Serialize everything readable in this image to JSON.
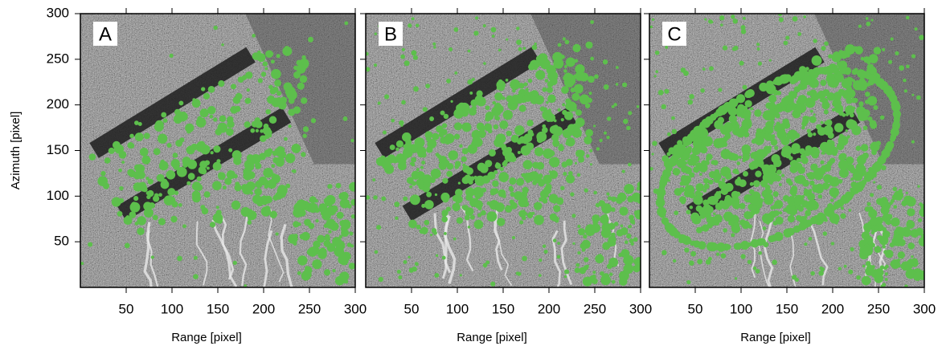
{
  "chart_data": [
    {
      "type": "image",
      "label": "A",
      "xlabel": "Range [pixel]",
      "ylabel": "Azimuth [pixel]",
      "xlim": [
        0,
        300
      ],
      "ylim": [
        0,
        300
      ],
      "xticks": [
        50,
        100,
        150,
        200,
        250,
        300
      ],
      "yticks": [
        50,
        100,
        150,
        200,
        250,
        300
      ],
      "ytick_labels": true,
      "color": "#5dbf4c"
    },
    {
      "type": "image",
      "label": "B",
      "xlabel": "Range [pixel]",
      "xlim": [
        0,
        300
      ],
      "ylim": [
        0,
        300
      ],
      "xticks": [
        50,
        100,
        150,
        200,
        250,
        300
      ],
      "yticks": [
        50,
        100,
        150,
        200,
        250,
        300
      ],
      "ytick_labels": false,
      "color": "#5dbf4c"
    },
    {
      "type": "image",
      "label": "C",
      "xlabel": "Range [pixel]",
      "xlim": [
        0,
        300
      ],
      "ylim": [
        0,
        300
      ],
      "xticks": [
        50,
        100,
        150,
        200,
        250,
        300
      ],
      "yticks": [
        50,
        100,
        150,
        200,
        250,
        300
      ],
      "ytick_labels": false,
      "color": "#5dbf4c"
    }
  ]
}
